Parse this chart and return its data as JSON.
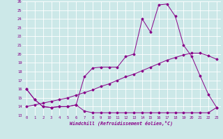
{
  "title": "",
  "xlabel": "Windchill (Refroidissement éolien,°C)",
  "ylabel": "",
  "bg_color": "#cce8e8",
  "line_color": "#880088",
  "xlim": [
    -0.5,
    23.5
  ],
  "ylim": [
    13,
    26
  ],
  "xticks": [
    0,
    1,
    2,
    3,
    4,
    5,
    6,
    7,
    8,
    9,
    10,
    11,
    12,
    13,
    14,
    15,
    16,
    17,
    18,
    19,
    20,
    21,
    22,
    23
  ],
  "yticks": [
    13,
    14,
    15,
    16,
    17,
    18,
    19,
    20,
    21,
    22,
    23,
    24,
    25,
    26
  ],
  "grid_color": "#ffffff",
  "series1_x": [
    0,
    1,
    2,
    3,
    4,
    5,
    6,
    7,
    8,
    9,
    10,
    11,
    12,
    13,
    14,
    15,
    16,
    17,
    18,
    19,
    20,
    21,
    22,
    23
  ],
  "series1_y": [
    16,
    14.8,
    14,
    13.9,
    14,
    14,
    14.2,
    13.5,
    13.3,
    13.3,
    13.3,
    13.3,
    13.3,
    13.3,
    13.3,
    13.3,
    13.3,
    13.3,
    13.3,
    13.3,
    13.3,
    13.3,
    13.3,
    13.9
  ],
  "series2_x": [
    0,
    1,
    2,
    3,
    4,
    5,
    6,
    7,
    8,
    9,
    10,
    11,
    12,
    13,
    14,
    15,
    16,
    17,
    18,
    19,
    20,
    21,
    22,
    23
  ],
  "series2_y": [
    14.0,
    14.2,
    14.4,
    14.6,
    14.8,
    15.0,
    15.3,
    15.6,
    15.9,
    16.3,
    16.6,
    17.0,
    17.4,
    17.7,
    18.1,
    18.5,
    18.9,
    19.3,
    19.6,
    19.9,
    20.1,
    20.1,
    19.8,
    19.4
  ],
  "series3_x": [
    0,
    1,
    2,
    3,
    4,
    5,
    6,
    7,
    8,
    9,
    10,
    11,
    12,
    13,
    14,
    15,
    16,
    17,
    18,
    19,
    20,
    21,
    22,
    23
  ],
  "series3_y": [
    16.0,
    14.8,
    14.0,
    13.9,
    14.0,
    14.0,
    14.2,
    17.4,
    18.4,
    18.5,
    18.5,
    18.5,
    19.7,
    20.0,
    24.0,
    22.5,
    25.6,
    25.7,
    24.3,
    21.0,
    19.7,
    17.5,
    15.4,
    13.9
  ]
}
